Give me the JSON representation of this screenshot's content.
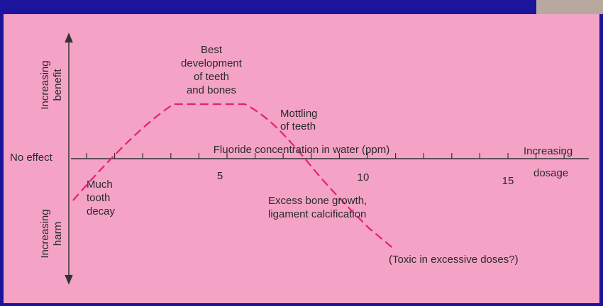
{
  "y_axis": {
    "top": [
      "Increasing",
      "benefit"
    ],
    "middle": "No effect",
    "bottom": [
      "Increasing",
      "harm"
    ]
  },
  "x_axis": {
    "label": "Fluoride concentration in water (ppm)",
    "end": [
      "Increasing",
      "dosage"
    ],
    "ticks": [
      "5",
      "10",
      "15"
    ]
  },
  "annotations": {
    "best": [
      "Best",
      "development",
      "of teeth",
      "and bones"
    ],
    "mottling": [
      "Mottling",
      "of teeth"
    ],
    "decay": [
      "Much",
      "tooth",
      "decay"
    ],
    "excess": [
      "Excess bone growth,",
      "ligament calcification"
    ],
    "toxic": "(Toxic in excessive doses?)"
  }
}
